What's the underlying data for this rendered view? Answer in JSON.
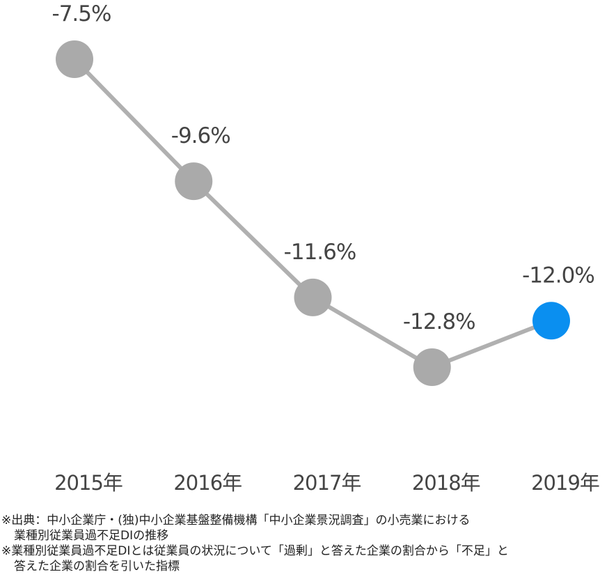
{
  "chart_data": {
    "type": "line",
    "categories": [
      "2015年",
      "2016年",
      "2017年",
      "2018年",
      "2019年"
    ],
    "values": [
      -7.5,
      -9.6,
      -11.6,
      -12.8,
      -12.0
    ],
    "value_labels": [
      "-7.5%",
      "-9.6%",
      "-11.6%",
      "-12.8%",
      "-12.0%"
    ],
    "color": "#b0b0b0",
    "point_colors": [
      "#aaaaaa",
      "#aaaaaa",
      "#aaaaaa",
      "#aaaaaa",
      "#0a8ff0"
    ],
    "notes": [
      [
        "※出典：中小企業庁・(独)中小企業基盤整備機構「中小企業景況調査」の小売業における",
        "業種別従業員過不足DIの推移"
      ],
      [
        "※業種別従業員過不足DIとは従業員の状況について「過剰」と答えた企業の割合から「不足」と",
        "答えた企業の割合を引いた指標"
      ]
    ]
  }
}
